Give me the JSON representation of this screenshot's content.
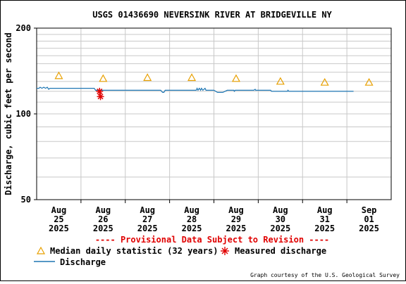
{
  "chart_data": {
    "type": "line",
    "title": "USGS 01436690 NEVERSINK RIVER AT BRIDGEVILLE NY",
    "ylabel": "Discharge, cubic feet per second",
    "xlabel": "",
    "yscale": "log",
    "ylim": [
      50,
      200
    ],
    "yticks": [
      {
        "value": 50,
        "label": "50"
      },
      {
        "value": 100,
        "label": "100"
      },
      {
        "value": 200,
        "label": "200"
      }
    ],
    "y_minor_gridlines": [
      60,
      70,
      80,
      90,
      110,
      120,
      130,
      140,
      150,
      160,
      170,
      180,
      190
    ],
    "xlim": [
      0,
      8
    ],
    "xticks": [
      {
        "pos": 0.5,
        "lines": [
          "Aug",
          "25",
          "2025"
        ]
      },
      {
        "pos": 1.5,
        "lines": [
          "Aug",
          "26",
          "2025"
        ]
      },
      {
        "pos": 2.5,
        "lines": [
          "Aug",
          "27",
          "2025"
        ]
      },
      {
        "pos": 3.5,
        "lines": [
          "Aug",
          "28",
          "2025"
        ]
      },
      {
        "pos": 4.5,
        "lines": [
          "Aug",
          "29",
          "2025"
        ]
      },
      {
        "pos": 5.5,
        "lines": [
          "Aug",
          "30",
          "2025"
        ]
      },
      {
        "pos": 6.5,
        "lines": [
          "Aug",
          "31",
          "2025"
        ]
      },
      {
        "pos": 7.5,
        "lines": [
          "Sep",
          "01",
          "2025"
        ]
      }
    ],
    "x_day_gridlines": [
      1,
      2,
      3,
      4,
      5,
      6,
      7
    ],
    "grid": true,
    "series": [
      {
        "name": "Discharge",
        "kind": "line",
        "color": "#1f77b4",
        "x": [
          0.0,
          0.05,
          0.08,
          0.12,
          0.16,
          0.2,
          0.24,
          0.27,
          0.3,
          0.5,
          1.0,
          1.3,
          1.33,
          1.36,
          2.0,
          2.8,
          2.84,
          2.87,
          2.9,
          3.5,
          3.6,
          3.62,
          3.64,
          3.67,
          3.7,
          3.72,
          3.75,
          3.8,
          3.82,
          3.9,
          4.0,
          4.08,
          4.1,
          4.2,
          4.3,
          4.4,
          4.45,
          4.46,
          4.48,
          4.6,
          4.9,
          4.93,
          4.94,
          4.96,
          5.0,
          5.2,
          5.28,
          5.3,
          5.5,
          5.66,
          5.67,
          5.69,
          6.0,
          6.5,
          7.0,
          7.15
        ],
        "y": [
          123,
          123,
          124,
          123,
          124,
          123,
          124,
          122,
          123,
          123,
          123,
          123,
          121,
          121,
          121,
          121,
          119,
          119,
          121,
          121,
          121,
          123,
          121,
          123,
          121,
          123,
          121,
          123,
          121,
          121,
          121,
          119,
          119,
          119,
          121,
          121,
          121,
          120,
          121,
          121,
          121,
          122,
          121,
          121,
          121,
          121,
          121,
          120,
          120,
          120,
          121,
          120,
          120,
          120,
          120,
          120
        ]
      },
      {
        "name": "Median daily statistic (32 years)",
        "kind": "marker",
        "marker": "triangle",
        "color": "#e8a000",
        "x": [
          0.5,
          1.5,
          2.5,
          3.5,
          4.5,
          5.5,
          6.5,
          7.5
        ],
        "y": [
          136,
          133,
          134,
          134,
          133,
          130,
          129,
          129
        ]
      },
      {
        "name": "Measured discharge",
        "kind": "marker",
        "marker": "asterisk",
        "color": "#e00000",
        "x": [
          1.42,
          1.44
        ],
        "y": [
          120,
          115
        ]
      }
    ],
    "provisional_note": "---- Provisional Data Subject to Revision ----",
    "legend_placement": "bottom-left",
    "credit": "Graph courtesy of the U.S. Geological Survey"
  }
}
